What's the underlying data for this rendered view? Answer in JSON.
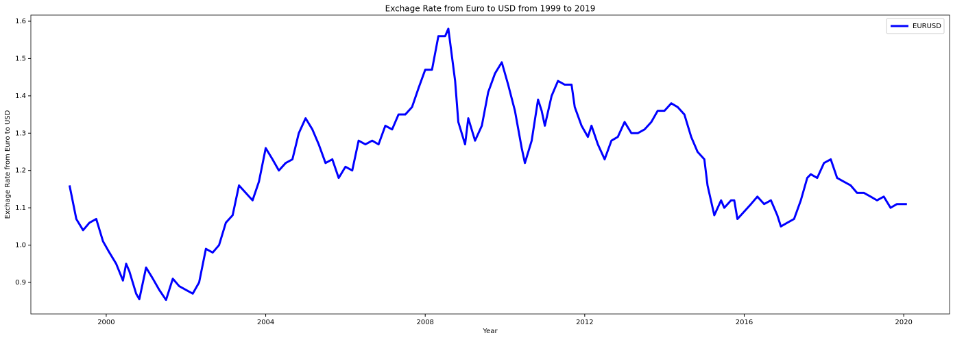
{
  "chart_data": {
    "type": "line",
    "title": "Exchage Rate from Euro to USD from 1999 to 2019",
    "xlabel": "Year",
    "ylabel": "Exchage Rate from Euro to USD",
    "legend": "upper right",
    "xlim": [
      1998.11,
      2021.15
    ],
    "ylim": [
      0.8155,
      1.6165
    ],
    "xticks": [
      2000,
      2004,
      2008,
      2012,
      2016,
      2020
    ],
    "yticks": [
      0.9,
      {
        "value": 1,
        "label": "1.0"
      },
      1.1,
      1.2,
      1.3,
      1.4,
      1.5,
      1.6
    ],
    "x": [
      1999.08,
      1999.25,
      1999.42,
      1999.58,
      1999.75,
      1999.92,
      2000.08,
      2000.25,
      2000.42,
      2000.5,
      2000.58,
      2000.75,
      2000.83,
      2001.0,
      2001.17,
      2001.33,
      2001.5,
      2001.67,
      2001.83,
      2002.0,
      2002.17,
      2002.33,
      2002.5,
      2002.67,
      2002.83,
      2003.0,
      2003.17,
      2003.33,
      2003.5,
      2003.67,
      2003.83,
      2004.0,
      2004.17,
      2004.33,
      2004.5,
      2004.67,
      2004.83,
      2005.0,
      2005.17,
      2005.33,
      2005.5,
      2005.67,
      2005.83,
      2006.0,
      2006.17,
      2006.33,
      2006.5,
      2006.67,
      2006.83,
      2007.0,
      2007.17,
      2007.33,
      2007.5,
      2007.67,
      2007.83,
      2008.0,
      2008.17,
      2008.33,
      2008.5,
      2008.58,
      2008.75,
      2008.83,
      2009.0,
      2009.08,
      2009.25,
      2009.42,
      2009.58,
      2009.75,
      2009.92,
      2010.08,
      2010.25,
      2010.42,
      2010.5,
      2010.67,
      2010.83,
      2010.92,
      2011.0,
      2011.17,
      2011.33,
      2011.5,
      2011.67,
      2011.75,
      2011.92,
      2012.08,
      2012.17,
      2012.33,
      2012.5,
      2012.67,
      2012.83,
      2013.0,
      2013.17,
      2013.33,
      2013.5,
      2013.67,
      2013.83,
      2014.0,
      2014.17,
      2014.33,
      2014.5,
      2014.67,
      2014.83,
      2015.0,
      2015.08,
      2015.25,
      2015.42,
      2015.5,
      2015.67,
      2015.75,
      2015.83,
      2016.0,
      2016.17,
      2016.33,
      2016.5,
      2016.67,
      2016.83,
      2016.92,
      2017.08,
      2017.25,
      2017.42,
      2017.58,
      2017.67,
      2017.83,
      2018.0,
      2018.17,
      2018.33,
      2018.5,
      2018.67,
      2018.83,
      2019.0,
      2019.17,
      2019.33,
      2019.5,
      2019.67,
      2019.83,
      2020.0,
      2020.08
    ],
    "series": [
      {
        "name": "EURUSD",
        "color": "#0000ff",
        "values": [
          1.16,
          1.07,
          1.04,
          1.06,
          1.07,
          1.01,
          0.98,
          0.95,
          0.905,
          0.95,
          0.93,
          0.87,
          0.855,
          0.94,
          0.91,
          0.88,
          0.853,
          0.91,
          0.89,
          0.88,
          0.87,
          0.9,
          0.99,
          0.98,
          1.0,
          1.06,
          1.08,
          1.16,
          1.14,
          1.12,
          1.17,
          1.26,
          1.23,
          1.2,
          1.22,
          1.23,
          1.3,
          1.34,
          1.31,
          1.27,
          1.22,
          1.23,
          1.18,
          1.21,
          1.2,
          1.28,
          1.27,
          1.28,
          1.27,
          1.32,
          1.31,
          1.35,
          1.35,
          1.37,
          1.42,
          1.47,
          1.47,
          1.56,
          1.56,
          1.58,
          1.44,
          1.33,
          1.27,
          1.34,
          1.28,
          1.32,
          1.41,
          1.46,
          1.49,
          1.43,
          1.36,
          1.26,
          1.22,
          1.28,
          1.39,
          1.36,
          1.32,
          1.4,
          1.44,
          1.43,
          1.43,
          1.37,
          1.32,
          1.29,
          1.32,
          1.27,
          1.23,
          1.28,
          1.29,
          1.33,
          1.3,
          1.3,
          1.31,
          1.33,
          1.36,
          1.36,
          1.38,
          1.37,
          1.35,
          1.29,
          1.25,
          1.23,
          1.16,
          1.08,
          1.12,
          1.1,
          1.12,
          1.12,
          1.07,
          1.09,
          1.11,
          1.13,
          1.11,
          1.12,
          1.08,
          1.05,
          1.06,
          1.07,
          1.12,
          1.18,
          1.19,
          1.18,
          1.22,
          1.23,
          1.18,
          1.17,
          1.16,
          1.14,
          1.14,
          1.13,
          1.12,
          1.13,
          1.1,
          1.11,
          1.11,
          1.11
        ]
      }
    ]
  }
}
